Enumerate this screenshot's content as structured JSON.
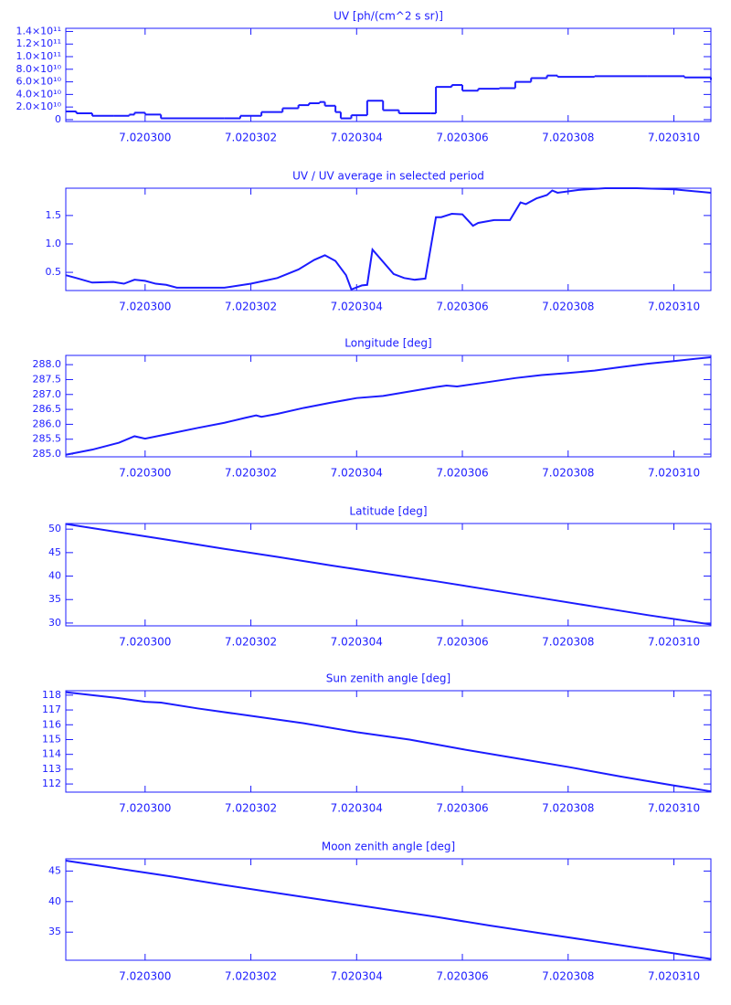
{
  "chart_data": [
    {
      "type": "line",
      "drawstyle": "steps",
      "title": "UV [ph/(cm^2 s sr)]",
      "color": "#1c1cff",
      "x": [
        7.0202985,
        7.0202987,
        7.020299,
        7.0202994,
        7.0202997,
        7.0202998,
        7.0203,
        7.0203003,
        7.0203015,
        7.0203018,
        7.0203022,
        7.0203026,
        7.0203029,
        7.0203031,
        7.0203033,
        7.0203034,
        7.0203036,
        7.0203037,
        7.0203039,
        7.0203042,
        7.0203045,
        7.0203048,
        7.0203054,
        7.0203055,
        7.0203058,
        7.020306,
        7.0203063,
        7.0203067,
        7.020307,
        7.0203073,
        7.0203076,
        7.0203078,
        7.0203085,
        7.0203095,
        7.0203102,
        7.0203107
      ],
      "values": [
        13000000000,
        10000000000,
        6000000000,
        6000000000,
        8000000000,
        11000000000,
        8000000000,
        2000000000,
        2000000000,
        6000000000,
        12000000000,
        18000000000,
        23000000000,
        26000000000,
        28000000000,
        22000000000,
        12000000000,
        2000000000,
        7000000000,
        30000000000,
        15000000000,
        10000000000,
        10000000000,
        52000000000,
        55000000000,
        46000000000,
        49000000000,
        50000000000,
        60000000000,
        66000000000,
        70000000000,
        68000000000,
        69000000000,
        69000000000,
        67000000000,
        63000000000
      ],
      "xlim": [
        7.0202985,
        7.0203107
      ],
      "xticks": [
        {
          "value": 7.0203,
          "label": "7.020300"
        },
        {
          "value": 7.020302,
          "label": "7.020302"
        },
        {
          "value": 7.020304,
          "label": "7.020304"
        },
        {
          "value": 7.020306,
          "label": "7.020306"
        },
        {
          "value": 7.020308,
          "label": "7.020308"
        },
        {
          "value": 7.02031,
          "label": "7.020310"
        }
      ],
      "ylim": [
        -3000000000,
        145000000000
      ],
      "yticks": [
        0,
        {
          "value": 20000000000,
          "label": "2.0×10¹⁰"
        },
        {
          "value": 40000000000,
          "label": "4.0×10¹⁰"
        },
        {
          "value": 60000000000,
          "label": "6.0×10¹⁰"
        },
        {
          "value": 80000000000,
          "label": "8.0×10¹⁰"
        },
        {
          "value": 100000000000,
          "label": "1.0×10¹¹"
        },
        {
          "value": 120000000000,
          "label": "1.2×10¹¹"
        },
        {
          "value": 140000000000,
          "label": "1.4×10¹¹"
        }
      ]
    },
    {
      "type": "line",
      "title": "UV / UV average in selected period",
      "color": "#1c1cff",
      "x": [
        7.0202985,
        7.0202987,
        7.020299,
        7.0202994,
        7.0202996,
        7.0202998,
        7.0203,
        7.0203002,
        7.0203004,
        7.0203006,
        7.0203015,
        7.020302,
        7.0203025,
        7.0203029,
        7.0203032,
        7.0203034,
        7.0203036,
        7.0203038,
        7.0203039,
        7.0203041,
        7.0203042,
        7.0203043,
        7.0203047,
        7.0203049,
        7.0203051,
        7.0203053,
        7.0203055,
        7.0203056,
        7.0203058,
        7.020306,
        7.0203062,
        7.0203063,
        7.0203066,
        7.0203069,
        7.0203071,
        7.0203072,
        7.0203074,
        7.0203076,
        7.0203077,
        7.0203078,
        7.0203082,
        7.0203087,
        7.0203093,
        7.02031,
        7.0203107
      ],
      "values": [
        0.45,
        0.4,
        0.32,
        0.33,
        0.3,
        0.37,
        0.35,
        0.3,
        0.28,
        0.23,
        0.23,
        0.3,
        0.4,
        0.55,
        0.72,
        0.8,
        0.7,
        0.45,
        0.2,
        0.27,
        0.28,
        0.9,
        0.47,
        0.4,
        0.37,
        0.39,
        1.47,
        1.47,
        1.53,
        1.52,
        1.32,
        1.37,
        1.42,
        1.42,
        1.73,
        1.7,
        1.8,
        1.86,
        1.94,
        1.9,
        1.95,
        1.98,
        1.98,
        1.96,
        1.9
      ],
      "xlim": [
        7.0202985,
        7.0203107
      ],
      "xticks": [
        {
          "value": 7.0203,
          "label": "7.020300"
        },
        {
          "value": 7.020302,
          "label": "7.020302"
        },
        {
          "value": 7.020304,
          "label": "7.020304"
        },
        {
          "value": 7.020306,
          "label": "7.020306"
        },
        {
          "value": 7.020308,
          "label": "7.020308"
        },
        {
          "value": 7.02031,
          "label": "7.020310"
        }
      ],
      "ylim": [
        0.18,
        1.98
      ],
      "yticks": [
        0.5,
        {
          "value": 1,
          "label": "1.0"
        },
        1.5
      ]
    },
    {
      "type": "line",
      "title": "Longitude [deg]",
      "color": "#1c1cff",
      "x": [
        7.0202985,
        7.020299,
        7.0202995,
        7.0202998,
        7.0203,
        7.0203005,
        7.020301,
        7.0203015,
        7.0203019,
        7.0203021,
        7.0203022,
        7.0203025,
        7.020303,
        7.0203035,
        7.020304,
        7.0203045,
        7.020305,
        7.0203055,
        7.0203057,
        7.0203059,
        7.0203065,
        7.020307,
        7.0203075,
        7.020308,
        7.0203085,
        7.020309,
        7.0203095,
        7.02031,
        7.0203107
      ],
      "values": [
        284.98,
        285.15,
        285.38,
        285.6,
        285.52,
        285.7,
        285.88,
        286.05,
        286.22,
        286.3,
        286.25,
        286.35,
        286.55,
        286.72,
        286.88,
        286.95,
        287.1,
        287.25,
        287.3,
        287.27,
        287.42,
        287.55,
        287.65,
        287.72,
        287.8,
        287.92,
        288.03,
        288.12,
        288.25
      ],
      "xlim": [
        7.0202985,
        7.0203107
      ],
      "xticks": [
        {
          "value": 7.0203,
          "label": "7.020300"
        },
        {
          "value": 7.020302,
          "label": "7.020302"
        },
        {
          "value": 7.020304,
          "label": "7.020304"
        },
        {
          "value": 7.020306,
          "label": "7.020306"
        },
        {
          "value": 7.020308,
          "label": "7.020308"
        },
        {
          "value": 7.02031,
          "label": "7.020310"
        }
      ],
      "ylim": [
        284.91,
        288.31
      ],
      "yticks": [
        {
          "value": 285,
          "label": "285.0"
        },
        285.5,
        {
          "value": 286,
          "label": "286.0"
        },
        286.5,
        {
          "value": 287,
          "label": "287.0"
        },
        287.5,
        {
          "value": 288,
          "label": "288.0"
        }
      ]
    },
    {
      "type": "line",
      "title": "Latitude [deg]",
      "color": "#1c1cff",
      "x": [
        7.0202985,
        7.0202995,
        7.0203005,
        7.0203015,
        7.0203025,
        7.0203035,
        7.0203045,
        7.0203055,
        7.0203065,
        7.0203075,
        7.0203085,
        7.0203095,
        7.0203107
      ],
      "values": [
        51.1,
        49.35,
        47.6,
        45.8,
        44.1,
        42.3,
        40.6,
        38.9,
        37.1,
        35.3,
        33.5,
        31.7,
        29.7
      ],
      "xlim": [
        7.0202985,
        7.0203107
      ],
      "xticks": [
        {
          "value": 7.0203,
          "label": "7.020300"
        },
        {
          "value": 7.020302,
          "label": "7.020302"
        },
        {
          "value": 7.020304,
          "label": "7.020304"
        },
        {
          "value": 7.020306,
          "label": "7.020306"
        },
        {
          "value": 7.020308,
          "label": "7.020308"
        },
        {
          "value": 7.02031,
          "label": "7.020310"
        }
      ],
      "ylim": [
        29.4,
        51.2
      ],
      "yticks": [
        30,
        35,
        40,
        45,
        50
      ]
    },
    {
      "type": "line",
      "title": "Sun zenith angle [deg]",
      "color": "#1c1cff",
      "x": [
        7.0202985,
        7.0202995,
        7.0203,
        7.0203003,
        7.020301,
        7.020302,
        7.020303,
        7.020304,
        7.020305,
        7.020306,
        7.020307,
        7.020308,
        7.020309,
        7.02031,
        7.0203107
      ],
      "values": [
        118.2,
        117.8,
        117.55,
        117.5,
        117.1,
        116.6,
        116.1,
        115.5,
        115.0,
        114.35,
        113.75,
        113.15,
        112.5,
        111.9,
        111.5
      ],
      "xlim": [
        7.0202985,
        7.0203107
      ],
      "xticks": [
        {
          "value": 7.0203,
          "label": "7.020300"
        },
        {
          "value": 7.020302,
          "label": "7.020302"
        },
        {
          "value": 7.020304,
          "label": "7.020304"
        },
        {
          "value": 7.020306,
          "label": "7.020306"
        },
        {
          "value": 7.020308,
          "label": "7.020308"
        },
        {
          "value": 7.02031,
          "label": "7.020310"
        }
      ],
      "ylim": [
        111.45,
        118.3
      ],
      "yticks": [
        112,
        113,
        114,
        115,
        116,
        117,
        118
      ]
    },
    {
      "type": "line",
      "title": "Moon zenith angle [deg]",
      "color": "#1c1cff",
      "x": [
        7.0202985,
        7.0202995,
        7.0203005,
        7.0203015,
        7.0203025,
        7.0203035,
        7.0203045,
        7.0203055,
        7.0203065,
        7.0203075,
        7.0203085,
        7.0203095,
        7.0203107
      ],
      "values": [
        46.7,
        45.4,
        44.1,
        42.7,
        41.4,
        40.1,
        38.8,
        37.5,
        36.1,
        34.8,
        33.5,
        32.2,
        30.6
      ],
      "xlim": [
        7.0202985,
        7.0203107
      ],
      "xticks": [
        {
          "value": 7.0203,
          "label": "7.020300"
        },
        {
          "value": 7.020302,
          "label": "7.020302"
        },
        {
          "value": 7.020304,
          "label": "7.020304"
        },
        {
          "value": 7.020306,
          "label": "7.020306"
        },
        {
          "value": 7.020308,
          "label": "7.020308"
        },
        {
          "value": 7.02031,
          "label": "7.020310"
        }
      ],
      "ylim": [
        30.4,
        47.0
      ],
      "yticks": [
        35,
        40,
        45
      ]
    }
  ]
}
